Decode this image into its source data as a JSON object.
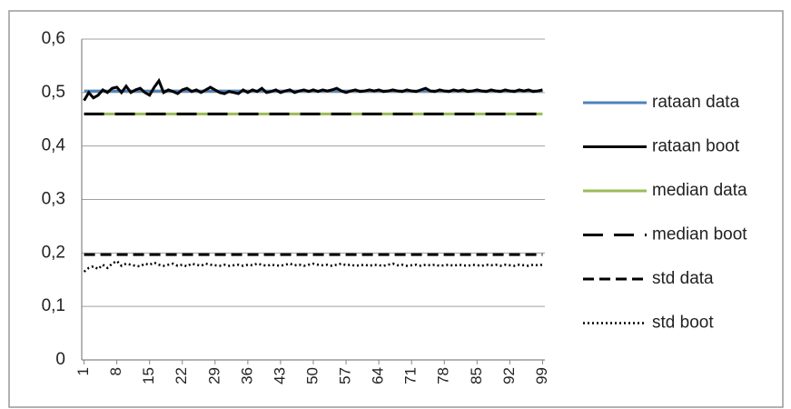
{
  "chart_data": {
    "type": "line",
    "x": [
      1,
      2,
      3,
      4,
      5,
      6,
      7,
      8,
      9,
      10,
      11,
      12,
      13,
      14,
      15,
      16,
      17,
      18,
      19,
      20,
      21,
      22,
      23,
      24,
      25,
      26,
      27,
      28,
      29,
      30,
      31,
      32,
      33,
      34,
      35,
      36,
      37,
      38,
      39,
      40,
      41,
      42,
      43,
      44,
      45,
      46,
      47,
      48,
      49,
      50,
      51,
      52,
      53,
      54,
      55,
      56,
      57,
      58,
      59,
      60,
      61,
      62,
      63,
      64,
      65,
      66,
      67,
      68,
      69,
      70,
      71,
      72,
      73,
      74,
      75,
      76,
      77,
      78,
      79,
      80,
      81,
      82,
      83,
      84,
      85,
      86,
      87,
      88,
      89,
      90,
      91,
      92,
      93,
      94,
      95,
      96,
      97,
      98,
      99
    ],
    "xlim": [
      0.5,
      99.5
    ],
    "xticks": [
      1,
      8,
      15,
      22,
      29,
      36,
      43,
      50,
      57,
      64,
      71,
      78,
      85,
      92,
      99
    ],
    "ylim": [
      0,
      0.6
    ],
    "yticks": [
      0,
      {
        "value": 0.1,
        "label": "0,1"
      },
      {
        "value": 0.2,
        "label": "0,2"
      },
      {
        "value": 0.3,
        "label": "0,3"
      },
      {
        "value": 0.4,
        "label": "0,4"
      },
      {
        "value": 0.5,
        "label": "0,5"
      },
      {
        "value": 0.6,
        "label": "0,6"
      }
    ],
    "grid": true,
    "legend": "right",
    "series": [
      {
        "name": "rataan data",
        "color": "#4f81bd",
        "dash": "solid",
        "values": [
          0.503,
          0.503,
          0.503,
          0.503,
          0.503,
          0.503,
          0.503,
          0.503,
          0.503,
          0.503,
          0.503,
          0.503,
          0.503,
          0.503,
          0.503,
          0.503,
          0.503,
          0.503,
          0.503,
          0.503,
          0.503,
          0.503,
          0.503,
          0.503,
          0.503,
          0.503,
          0.503,
          0.503,
          0.503,
          0.503,
          0.503,
          0.503,
          0.503,
          0.503,
          0.503,
          0.503,
          0.503,
          0.503,
          0.503,
          0.503,
          0.503,
          0.503,
          0.503,
          0.503,
          0.503,
          0.503,
          0.503,
          0.503,
          0.503,
          0.503,
          0.503,
          0.503,
          0.503,
          0.503,
          0.503,
          0.503,
          0.503,
          0.503,
          0.503,
          0.503,
          0.503,
          0.503,
          0.503,
          0.503,
          0.503,
          0.503,
          0.503,
          0.503,
          0.503,
          0.503,
          0.503,
          0.503,
          0.503,
          0.503,
          0.503,
          0.503,
          0.503,
          0.503,
          0.503,
          0.503,
          0.503,
          0.503,
          0.503,
          0.503,
          0.503,
          0.503,
          0.503,
          0.503,
          0.503,
          0.503,
          0.503,
          0.503,
          0.503,
          0.503,
          0.503,
          0.503,
          0.503,
          0.503,
          0.503
        ]
      },
      {
        "name": "rataan boot",
        "color": "#000000",
        "dash": "solid",
        "values": [
          0.485,
          0.5,
          0.49,
          0.495,
          0.505,
          0.5,
          0.508,
          0.51,
          0.5,
          0.512,
          0.5,
          0.505,
          0.508,
          0.5,
          0.495,
          0.51,
          0.522,
          0.5,
          0.505,
          0.502,
          0.498,
          0.505,
          0.508,
          0.502,
          0.505,
          0.5,
          0.505,
          0.51,
          0.505,
          0.5,
          0.498,
          0.502,
          0.5,
          0.498,
          0.505,
          0.5,
          0.505,
          0.502,
          0.508,
          0.5,
          0.502,
          0.505,
          0.5,
          0.503,
          0.505,
          0.5,
          0.503,
          0.505,
          0.502,
          0.505,
          0.502,
          0.505,
          0.503,
          0.505,
          0.508,
          0.503,
          0.5,
          0.503,
          0.505,
          0.502,
          0.503,
          0.505,
          0.503,
          0.505,
          0.502,
          0.503,
          0.505,
          0.503,
          0.502,
          0.505,
          0.503,
          0.502,
          0.505,
          0.508,
          0.503,
          0.502,
          0.505,
          0.503,
          0.502,
          0.505,
          0.503,
          0.505,
          0.502,
          0.503,
          0.505,
          0.503,
          0.502,
          0.505,
          0.503,
          0.502,
          0.505,
          0.503,
          0.502,
          0.505,
          0.503,
          0.505,
          0.502,
          0.503,
          0.505
        ]
      },
      {
        "name": "median data",
        "color": "#9bbb59",
        "dash": "solid",
        "values": [
          0.46,
          0.46,
          0.46,
          0.46,
          0.46,
          0.46,
          0.46,
          0.46,
          0.46,
          0.46,
          0.46,
          0.46,
          0.46,
          0.46,
          0.46,
          0.46,
          0.46,
          0.46,
          0.46,
          0.46,
          0.46,
          0.46,
          0.46,
          0.46,
          0.46,
          0.46,
          0.46,
          0.46,
          0.46,
          0.46,
          0.46,
          0.46,
          0.46,
          0.46,
          0.46,
          0.46,
          0.46,
          0.46,
          0.46,
          0.46,
          0.46,
          0.46,
          0.46,
          0.46,
          0.46,
          0.46,
          0.46,
          0.46,
          0.46,
          0.46,
          0.46,
          0.46,
          0.46,
          0.46,
          0.46,
          0.46,
          0.46,
          0.46,
          0.46,
          0.46,
          0.46,
          0.46,
          0.46,
          0.46,
          0.46,
          0.46,
          0.46,
          0.46,
          0.46,
          0.46,
          0.46,
          0.46,
          0.46,
          0.46,
          0.46,
          0.46,
          0.46,
          0.46,
          0.46,
          0.46,
          0.46,
          0.46,
          0.46,
          0.46,
          0.46,
          0.46,
          0.46,
          0.46,
          0.46,
          0.46,
          0.46,
          0.46,
          0.46,
          0.46,
          0.46,
          0.46,
          0.46,
          0.46,
          0.46
        ]
      },
      {
        "name": "median boot",
        "color": "#000000",
        "dash": "long",
        "values": [
          0.46,
          0.46,
          0.46,
          0.46,
          0.46,
          0.46,
          0.46,
          0.46,
          0.46,
          0.46,
          0.46,
          0.46,
          0.46,
          0.46,
          0.46,
          0.46,
          0.46,
          0.46,
          0.46,
          0.46,
          0.46,
          0.46,
          0.46,
          0.46,
          0.46,
          0.46,
          0.46,
          0.46,
          0.46,
          0.46,
          0.46,
          0.46,
          0.46,
          0.46,
          0.46,
          0.46,
          0.46,
          0.46,
          0.46,
          0.46,
          0.46,
          0.46,
          0.46,
          0.46,
          0.46,
          0.46,
          0.46,
          0.46,
          0.46,
          0.46,
          0.46,
          0.46,
          0.46,
          0.46,
          0.46,
          0.46,
          0.46,
          0.46,
          0.46,
          0.46,
          0.46,
          0.46,
          0.46,
          0.46,
          0.46,
          0.46,
          0.46,
          0.46,
          0.46,
          0.46,
          0.46,
          0.46,
          0.46,
          0.46,
          0.46,
          0.46,
          0.46,
          0.46,
          0.46,
          0.46,
          0.46,
          0.46,
          0.46,
          0.46,
          0.46,
          0.46,
          0.46,
          0.46,
          0.46,
          0.46,
          0.46,
          0.46,
          0.46,
          0.46,
          0.46,
          0.46,
          0.46,
          0.46,
          0.46
        ]
      },
      {
        "name": "std data",
        "color": "#000000",
        "dash": "dash",
        "values": [
          0.197,
          0.197,
          0.197,
          0.197,
          0.197,
          0.197,
          0.197,
          0.197,
          0.197,
          0.197,
          0.197,
          0.197,
          0.197,
          0.197,
          0.197,
          0.197,
          0.197,
          0.197,
          0.197,
          0.197,
          0.197,
          0.197,
          0.197,
          0.197,
          0.197,
          0.197,
          0.197,
          0.197,
          0.197,
          0.197,
          0.197,
          0.197,
          0.197,
          0.197,
          0.197,
          0.197,
          0.197,
          0.197,
          0.197,
          0.197,
          0.197,
          0.197,
          0.197,
          0.197,
          0.197,
          0.197,
          0.197,
          0.197,
          0.197,
          0.197,
          0.197,
          0.197,
          0.197,
          0.197,
          0.197,
          0.197,
          0.197,
          0.197,
          0.197,
          0.197,
          0.197,
          0.197,
          0.197,
          0.197,
          0.197,
          0.197,
          0.197,
          0.197,
          0.197,
          0.197,
          0.197,
          0.197,
          0.197,
          0.197,
          0.197,
          0.197,
          0.197,
          0.197,
          0.197,
          0.197,
          0.197,
          0.197,
          0.197,
          0.197,
          0.197,
          0.197,
          0.197,
          0.197,
          0.197,
          0.197,
          0.197,
          0.197,
          0.197,
          0.197,
          0.197,
          0.197,
          0.197,
          0.197,
          0.197
        ]
      },
      {
        "name": "std boot",
        "color": "#000000",
        "dash": "dot",
        "values": [
          0.165,
          0.172,
          0.175,
          0.17,
          0.178,
          0.172,
          0.18,
          0.185,
          0.176,
          0.18,
          0.178,
          0.176,
          0.175,
          0.18,
          0.178,
          0.182,
          0.178,
          0.176,
          0.178,
          0.18,
          0.176,
          0.178,
          0.175,
          0.18,
          0.178,
          0.176,
          0.18,
          0.178,
          0.177,
          0.176,
          0.178,
          0.176,
          0.177,
          0.178,
          0.176,
          0.178,
          0.177,
          0.18,
          0.178,
          0.176,
          0.178,
          0.177,
          0.176,
          0.178,
          0.18,
          0.177,
          0.178,
          0.176,
          0.178,
          0.18,
          0.178,
          0.177,
          0.178,
          0.176,
          0.178,
          0.18,
          0.177,
          0.178,
          0.176,
          0.177,
          0.178,
          0.176,
          0.178,
          0.177,
          0.176,
          0.178,
          0.18,
          0.177,
          0.178,
          0.176,
          0.177,
          0.178,
          0.176,
          0.178,
          0.177,
          0.178,
          0.176,
          0.177,
          0.178,
          0.176,
          0.178,
          0.177,
          0.176,
          0.178,
          0.177,
          0.176,
          0.178,
          0.177,
          0.178,
          0.176,
          0.178,
          0.177,
          0.176,
          0.178,
          0.177,
          0.176,
          0.178,
          0.177,
          0.178
        ]
      }
    ]
  }
}
